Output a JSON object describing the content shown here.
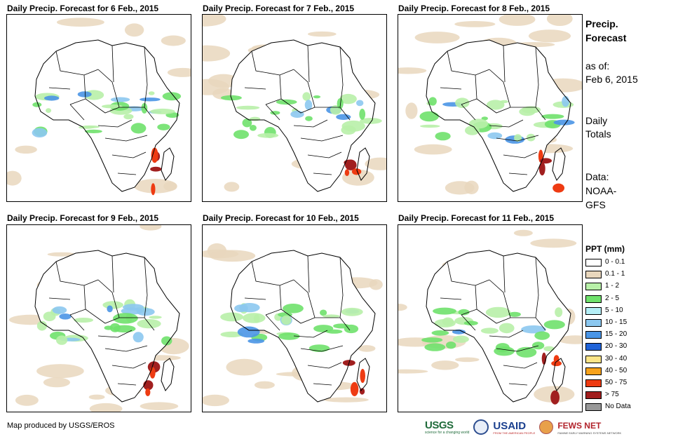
{
  "panels": [
    {
      "title": "Daily Precip. Forecast for 6 Feb., 2015"
    },
    {
      "title": "Daily Precip. Forecast for 7 Feb., 2015"
    },
    {
      "title": "Daily Precip. Forecast for 8 Feb., 2015"
    },
    {
      "title": "Daily Precip. Forecast for 9 Feb., 2015"
    },
    {
      "title": "Daily Precip. Forecast for 10 Feb., 2015"
    },
    {
      "title": "Daily Precip. Forecast for 11 Feb., 2015"
    }
  ],
  "side": {
    "title_line1": "Precip.",
    "title_line2": "Forecast",
    "asof_line1": "as of:",
    "asof_line2": "Feb 6, 2015",
    "totals_line1": "Daily",
    "totals_line2": "Totals",
    "data_line1": "Data:",
    "data_line2": "NOAA-",
    "data_line3": "GFS"
  },
  "legend": {
    "title": "PPT (mm)",
    "items": [
      {
        "label": "0 - 0.1",
        "color": "#ffffff"
      },
      {
        "label": "0.1 - 1",
        "color": "#e9d7bd"
      },
      {
        "label": "1 - 2",
        "color": "#b8f0a8"
      },
      {
        "label": "2 - 5",
        "color": "#6fe16c"
      },
      {
        "label": "5 - 10",
        "color": "#b4eef6"
      },
      {
        "label": "10 - 15",
        "color": "#8cc8f0"
      },
      {
        "label": "15 - 20",
        "color": "#4a95e6"
      },
      {
        "label": "20 - 30",
        "color": "#2063d8"
      },
      {
        "label": "30 - 40",
        "color": "#fce588"
      },
      {
        "label": "40 - 50",
        "color": "#f7a21b"
      },
      {
        "label": "50 - 75",
        "color": "#ee3b12"
      },
      {
        "label": "> 75",
        "color": "#a11f1f"
      },
      {
        "label": "No Data",
        "color": "#999999"
      }
    ]
  },
  "footer": {
    "credit": "Map produced by USGS/EROS",
    "logo_usgs": "USGS",
    "logo_usgs_tag": "science for a changing world",
    "logo_usaid": "USAID",
    "logo_usaid_tag": "FROM THE AMERICAN PEOPLE",
    "logo_fews": "FEWS NET",
    "logo_fews_tag": "FAMINE EARLY WARNING SYSTEMS NETWORK"
  }
}
